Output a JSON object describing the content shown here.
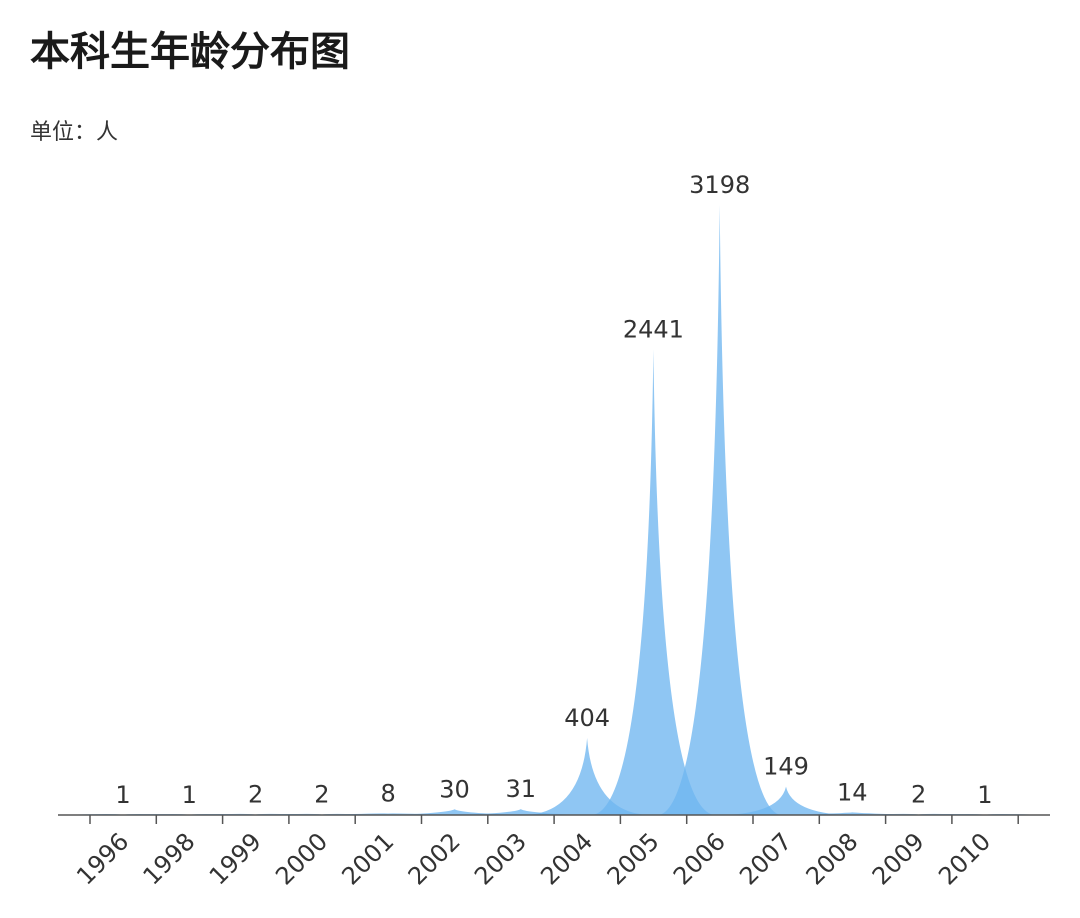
{
  "header": {
    "title": "本科生年龄分布图",
    "unit": "单位：人"
  },
  "chart_data": {
    "type": "area",
    "title": "本科生年龄分布图",
    "unit_label": "单位：人",
    "categories": [
      "1996",
      "1998",
      "1999",
      "2000",
      "2001",
      "2002",
      "2003",
      "2004",
      "2005",
      "2006",
      "2007",
      "2008",
      "2009",
      "2010"
    ],
    "values": [
      1,
      1,
      2,
      2,
      8,
      30,
      31,
      404,
      2441,
      3198,
      149,
      14,
      2,
      1
    ],
    "xlabel": "",
    "ylabel": "",
    "ylim": [
      0,
      3198
    ],
    "grid": false,
    "legend": "none",
    "colors": {
      "fill": "#6fb6f0",
      "overlap": "#4a9ee8",
      "axis": "#555555"
    }
  }
}
